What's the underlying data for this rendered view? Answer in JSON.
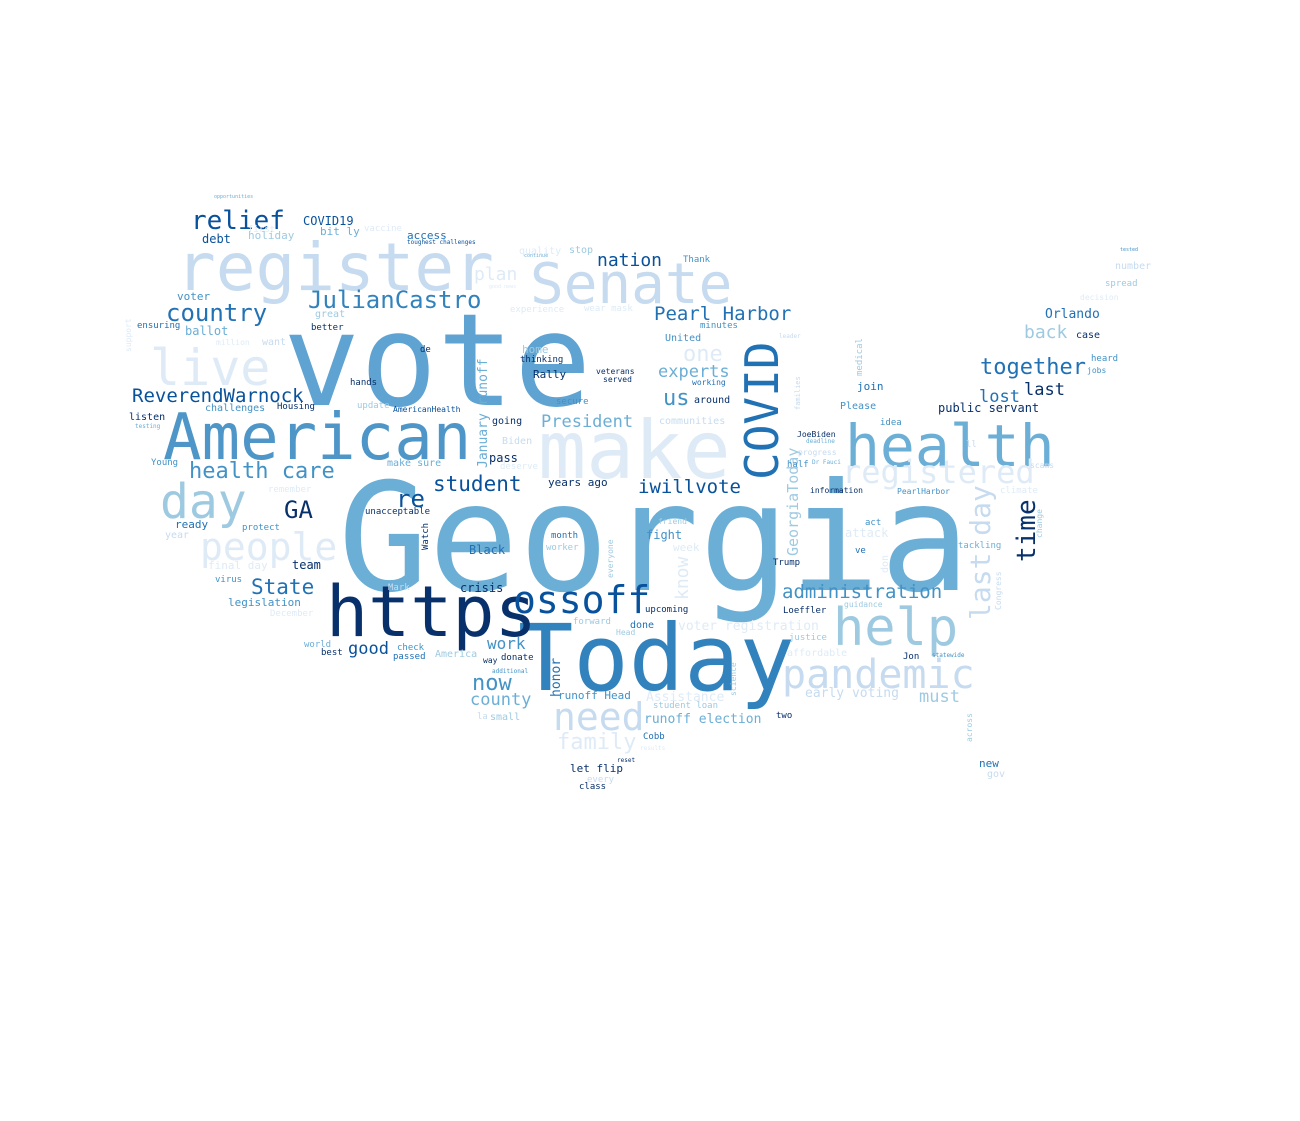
{
  "palette": {
    "darkest": "#08306b",
    "dark": "#08519c",
    "mid_dark": "#2171b5",
    "mid": "#4292c6",
    "mid_light": "#6baed6",
    "light": "#9ecae1",
    "lighter": "#c6dbef",
    "lightest": "#deebf7"
  },
  "words": [
    {
      "text": "Georgia",
      "color": "#6baed6"
    },
    {
      "text": "vote",
      "color": "#5ea3d2"
    },
    {
      "text": "Today",
      "color": "#3182bd"
    },
    {
      "text": "https",
      "color": "#08306b"
    },
    {
      "text": "make",
      "color": "#deebf7"
    },
    {
      "text": "register",
      "color": "#c6dbef"
    },
    {
      "text": "American",
      "color": "#4f96c8"
    },
    {
      "text": "health",
      "color": "#6baed6"
    },
    {
      "text": "Senate",
      "color": "#c6dbef"
    },
    {
      "text": "live",
      "color": "#deebf7"
    },
    {
      "text": "help",
      "color": "#9ecae1"
    },
    {
      "text": "ossoff",
      "color": "#08519c"
    },
    {
      "text": "COVID",
      "color": "#2171b5"
    },
    {
      "text": "day",
      "color": "#9ecae1"
    },
    {
      "text": "pandemic",
      "color": "#c6dbef"
    },
    {
      "text": "people",
      "color": "#deebf7"
    },
    {
      "text": "need",
      "color": "#c6dbef"
    },
    {
      "text": "registered",
      "color": "#deebf7"
    },
    {
      "text": "JulianCastro",
      "color": "#3182bd"
    },
    {
      "text": "relief",
      "color": "#08519c"
    },
    {
      "text": "health care",
      "color": "#4292c6"
    },
    {
      "text": "country",
      "color": "#2171b5"
    },
    {
      "text": "together",
      "color": "#2171b5"
    },
    {
      "text": "ReverendWarnock",
      "color": "#08519c"
    },
    {
      "text": "last day",
      "color": "#c6dbef"
    },
    {
      "text": "GA",
      "color": "#08306b"
    },
    {
      "text": "Pearl Harbor",
      "color": "#2171b5"
    },
    {
      "text": "administration",
      "color": "#4292c6"
    },
    {
      "text": "now",
      "color": "#4292c6"
    },
    {
      "text": "time",
      "color": "#08306b"
    },
    {
      "text": "State",
      "color": "#2171b5"
    },
    {
      "text": "student",
      "color": "#08519c"
    },
    {
      "text": "re",
      "color": "#08519c"
    },
    {
      "text": "nation",
      "color": "#08519c"
    },
    {
      "text": "family",
      "color": "#deebf7"
    },
    {
      "text": "one",
      "color": "#deebf7"
    },
    {
      "text": "us",
      "color": "#4292c6"
    },
    {
      "text": "plan",
      "color": "#deebf7"
    },
    {
      "text": "iwillvote",
      "color": "#08519c"
    },
    {
      "text": "back",
      "color": "#9ecae1"
    },
    {
      "text": "President",
      "color": "#6baed6"
    },
    {
      "text": "lost",
      "color": "#2171b5"
    },
    {
      "text": "last",
      "color": "#08306b"
    },
    {
      "text": "experts",
      "color": "#6baed6"
    },
    {
      "text": "county",
      "color": "#6baed6"
    },
    {
      "text": "work",
      "color": "#4292c6"
    },
    {
      "text": "good",
      "color": "#08519c"
    },
    {
      "text": "GeorgiaToday",
      "color": "#9ecae1"
    },
    {
      "text": "must",
      "color": "#9ecae1"
    },
    {
      "text": "know",
      "color": "#deebf7"
    },
    {
      "text": "January runoff",
      "color": "#6baed6"
    },
    {
      "text": "COVID19",
      "color": "#08519c"
    },
    {
      "text": "Orlando",
      "color": "#2171b5"
    },
    {
      "text": "public servant",
      "color": "#08306b"
    },
    {
      "text": "runoff election",
      "color": "#6baed6"
    },
    {
      "text": "voter registration",
      "color": "#deebf7"
    },
    {
      "text": "early voting",
      "color": "#c6dbef"
    },
    {
      "text": "runoff Head",
      "color": "#4292c6"
    },
    {
      "text": "Assistance",
      "color": "#deebf7"
    },
    {
      "text": "honor",
      "color": "#2171b5"
    },
    {
      "text": "debt",
      "color": "#08519c"
    },
    {
      "text": "holiday",
      "color": "#9ecae1"
    },
    {
      "text": "bit ly",
      "color": "#6baed6"
    },
    {
      "text": "access",
      "color": "#2171b5"
    },
    {
      "text": "voter",
      "color": "#4292c6"
    },
    {
      "text": "ballot",
      "color": "#6baed6"
    },
    {
      "text": "ensuring",
      "color": "#2171b5"
    },
    {
      "text": "better",
      "color": "#08306b"
    },
    {
      "text": "great",
      "color": "#9ecae1"
    },
    {
      "text": "want",
      "color": "#c6dbef"
    },
    {
      "text": "million",
      "color": "#deebf7"
    },
    {
      "text": "hands",
      "color": "#08306b"
    },
    {
      "text": "listen",
      "color": "#08306b"
    },
    {
      "text": "challenges",
      "color": "#4292c6"
    },
    {
      "text": "Housing",
      "color": "#08306b"
    },
    {
      "text": "update",
      "color": "#9ecae1"
    },
    {
      "text": "AmericanHealth",
      "color": "#08519c"
    },
    {
      "text": "testing",
      "color": "#6baed6"
    },
    {
      "text": "Young",
      "color": "#4292c6"
    },
    {
      "text": "remember",
      "color": "#deebf7"
    },
    {
      "text": "ready",
      "color": "#2171b5"
    },
    {
      "text": "protect",
      "color": "#4292c6"
    },
    {
      "text": "year",
      "color": "#c6dbef"
    },
    {
      "text": "final day",
      "color": "#deebf7"
    },
    {
      "text": "virus",
      "color": "#4292c6"
    },
    {
      "text": "legislation",
      "color": "#4292c6"
    },
    {
      "text": "December",
      "color": "#deebf7"
    },
    {
      "text": "team",
      "color": "#08306b"
    },
    {
      "text": "Mark",
      "color": "#c6dbef"
    },
    {
      "text": "world",
      "color": "#6baed6"
    },
    {
      "text": "best",
      "color": "#08306b"
    },
    {
      "text": "check",
      "color": "#4292c6"
    },
    {
      "text": "passed",
      "color": "#2171b5"
    },
    {
      "text": "America",
      "color": "#9ecae1"
    },
    {
      "text": "way",
      "color": "#08306b"
    },
    {
      "text": "donate",
      "color": "#08306b"
    },
    {
      "text": "additional",
      "color": "#4292c6"
    },
    {
      "text": "small",
      "color": "#9ecae1"
    },
    {
      "text": "la",
      "color": "#c6dbef"
    },
    {
      "text": "unacceptable",
      "color": "#08306b"
    },
    {
      "text": "make sure",
      "color": "#6baed6"
    },
    {
      "text": "deserve",
      "color": "#deebf7"
    },
    {
      "text": "pass",
      "color": "#08306b"
    },
    {
      "text": "Biden",
      "color": "#c6dbef"
    },
    {
      "text": "going",
      "color": "#08306b"
    },
    {
      "text": "Rally",
      "color": "#08306b"
    },
    {
      "text": "thinking",
      "color": "#08306b"
    },
    {
      "text": "home",
      "color": "#9ecae1"
    },
    {
      "text": "de",
      "color": "#08306b"
    },
    {
      "text": "veterans",
      "color": "#08306b"
    },
    {
      "text": "served",
      "color": "#08306b"
    },
    {
      "text": "secure",
      "color": "#4292c6"
    },
    {
      "text": "years ago",
      "color": "#08306b"
    },
    {
      "text": "Watch",
      "color": "#08306b"
    },
    {
      "text": "Black",
      "color": "#2171b5"
    },
    {
      "text": "month",
      "color": "#2171b5"
    },
    {
      "text": "worker",
      "color": "#9ecae1"
    },
    {
      "text": "everyone",
      "color": "#9ecae1"
    },
    {
      "text": "crisis",
      "color": "#08306b"
    },
    {
      "text": "fight",
      "color": "#4292c6"
    },
    {
      "text": "week",
      "color": "#deebf7"
    },
    {
      "text": "upcoming",
      "color": "#08306b"
    },
    {
      "text": "done",
      "color": "#2171b5"
    },
    {
      "text": "forward",
      "color": "#9ecae1"
    },
    {
      "text": "Head",
      "color": "#9ecae1"
    },
    {
      "text": "let flip",
      "color": "#08306b"
    },
    {
      "text": "class",
      "color": "#08306b"
    },
    {
      "text": "every",
      "color": "#c6dbef"
    },
    {
      "text": "reset",
      "color": "#08306b"
    },
    {
      "text": "results",
      "color": "#deebf7"
    },
    {
      "text": "Cobb",
      "color": "#2171b5"
    },
    {
      "text": "student loan",
      "color": "#9ecae1"
    },
    {
      "text": "two",
      "color": "#08306b"
    },
    {
      "text": "science",
      "color": "#9ecae1"
    },
    {
      "text": "affordable",
      "color": "#deebf7"
    },
    {
      "text": "justice",
      "color": "#9ecae1"
    },
    {
      "text": "Loeffler",
      "color": "#08306b"
    },
    {
      "text": "guidance",
      "color": "#9ecae1"
    },
    {
      "text": "Trump",
      "color": "#08306b"
    },
    {
      "text": "ve",
      "color": "#2171b5"
    },
    {
      "text": "act",
      "color": "#4292c6"
    },
    {
      "text": "attack",
      "color": "#deebf7"
    },
    {
      "text": "friend",
      "color": "#9ecae1"
    },
    {
      "text": "information",
      "color": "#08306b"
    },
    {
      "text": "progress",
      "color": "#c6dbef"
    },
    {
      "text": "half",
      "color": "#4292c6"
    },
    {
      "text": "Dr Fauci",
      "color": "#6baed6"
    },
    {
      "text": "deadline",
      "color": "#6baed6"
    },
    {
      "text": "JoeBiden",
      "color": "#08306b"
    },
    {
      "text": "communities",
      "color": "#c6dbef"
    },
    {
      "text": "around",
      "color": "#08306b"
    },
    {
      "text": "working",
      "color": "#2171b5"
    },
    {
      "text": "minutes",
      "color": "#4292c6"
    },
    {
      "text": "United",
      "color": "#4292c6"
    },
    {
      "text": "Thank",
      "color": "#4292c6"
    },
    {
      "text": "wear mask",
      "color": "#deebf7"
    },
    {
      "text": "stop",
      "color": "#9ecae1"
    },
    {
      "text": "quality",
      "color": "#deebf7"
    },
    {
      "text": "experience",
      "color": "#deebf7"
    },
    {
      "text": "good news",
      "color": "#deebf7"
    },
    {
      "text": "continue",
      "color": "#6baed6"
    },
    {
      "text": "toughest challenges",
      "color": "#08519c"
    },
    {
      "text": "opportunities",
      "color": "#6baed6"
    },
    {
      "text": "tested",
      "color": "#4292c6"
    },
    {
      "text": "number",
      "color": "#c6dbef"
    },
    {
      "text": "spread",
      "color": "#9ecae1"
    },
    {
      "text": "decision",
      "color": "#deebf7"
    },
    {
      "text": "case",
      "color": "#08306b"
    },
    {
      "text": "heard",
      "color": "#4292c6"
    },
    {
      "text": "jobs",
      "color": "#4292c6"
    },
    {
      "text": "idea",
      "color": "#4292c6"
    },
    {
      "text": "join",
      "color": "#2171b5"
    },
    {
      "text": "Please",
      "color": "#4292c6"
    },
    {
      "text": "medical",
      "color": "#9ecae1"
    },
    {
      "text": "families",
      "color": "#c6dbef"
    },
    {
      "text": "leader",
      "color": "#c6dbef"
    },
    {
      "text": "ll",
      "color": "#c6dbef"
    },
    {
      "text": "PearlHarbor",
      "color": "#4292c6"
    },
    {
      "text": "scams",
      "color": "#c6dbef"
    },
    {
      "text": "climate",
      "color": "#deebf7"
    },
    {
      "text": "change",
      "color": "#9ecae1"
    },
    {
      "text": "tackling",
      "color": "#6baed6"
    },
    {
      "text": "Congress",
      "color": "#c6dbef"
    },
    {
      "text": "statewide",
      "color": "#4292c6"
    },
    {
      "text": "Jon",
      "color": "#08306b"
    },
    {
      "text": "across",
      "color": "#9ecae1"
    },
    {
      "text": "new",
      "color": "#2171b5"
    },
    {
      "text": "gov",
      "color": "#c6dbef"
    },
    {
      "text": "don",
      "color": "#deebf7"
    },
    {
      "text": "first",
      "color": "#deebf7"
    },
    {
      "text": "vaccine",
      "color": "#deebf7"
    },
    {
      "text": "support",
      "color": "#deebf7"
    }
  ]
}
